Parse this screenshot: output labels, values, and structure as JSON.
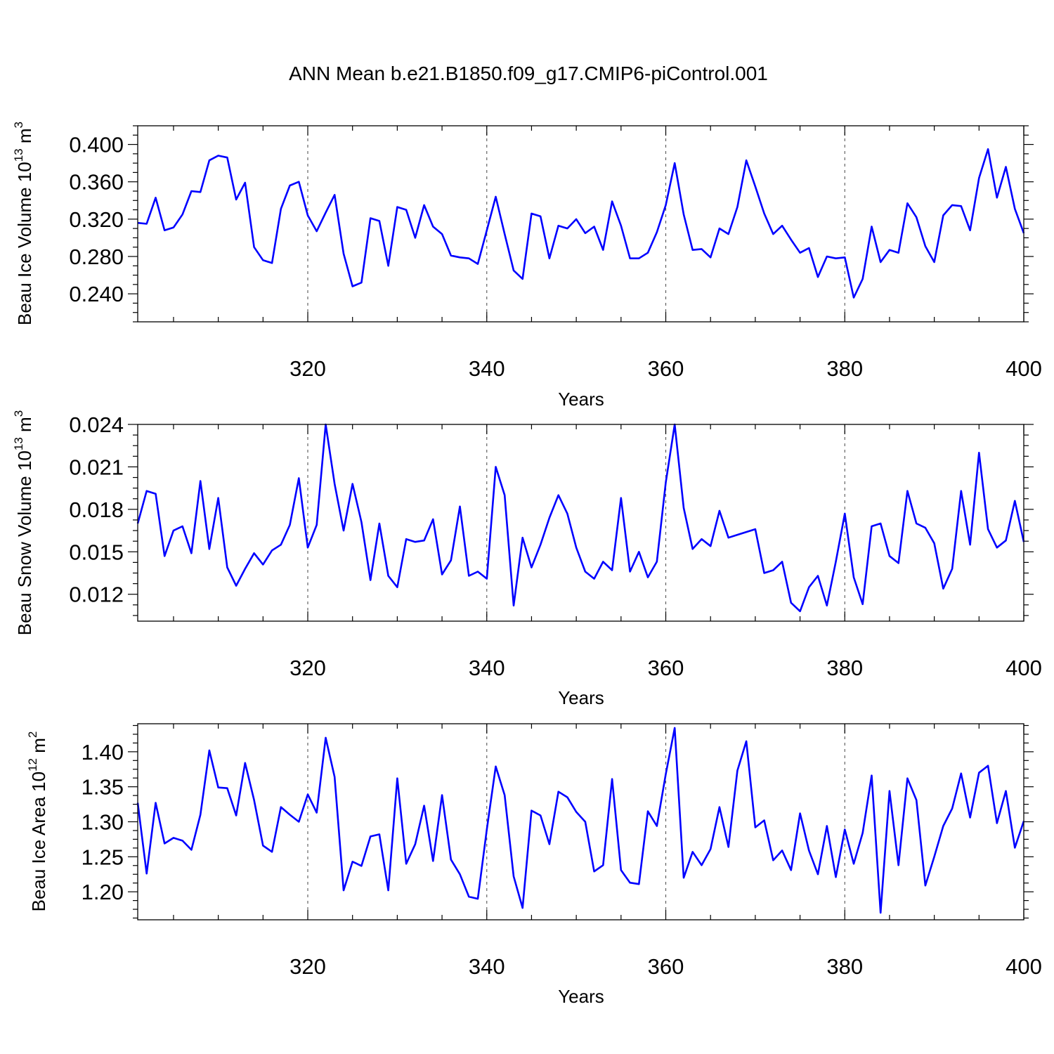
{
  "title": "ANN Mean b.e21.B1850.f09_g17.CMIP6-piControl.001",
  "colors": {
    "line": "#0000ff",
    "axis": "#000000",
    "grid": "#555555"
  },
  "chart_data": [
    {
      "type": "line",
      "name": "ice-volume",
      "ylabel": "Beau Ice Volume 10",
      "ylabel_sup": "13",
      "ylabel_unit": "m",
      "ylabel_unit_sup": "3",
      "xlabel": "Years",
      "xlim": [
        301,
        400
      ],
      "ylim": [
        0.21,
        0.42
      ],
      "x_ticks": [
        "320",
        "340",
        "360",
        "380",
        "400"
      ],
      "x_tick_values": [
        320,
        340,
        360,
        380,
        400
      ],
      "y_ticks": [
        "0.400",
        "0.360",
        "0.320",
        "0.280",
        "0.240"
      ],
      "y_tick_values": [
        0.4,
        0.36,
        0.32,
        0.28,
        0.24
      ],
      "x_start": 301,
      "values": [
        0.316,
        0.315,
        0.343,
        0.308,
        0.311,
        0.325,
        0.35,
        0.349,
        0.383,
        0.388,
        0.386,
        0.341,
        0.359,
        0.29,
        0.276,
        0.273,
        0.331,
        0.356,
        0.36,
        0.324,
        0.307,
        0.327,
        0.346,
        0.283,
        0.248,
        0.252,
        0.321,
        0.318,
        0.27,
        0.333,
        0.33,
        0.3,
        0.335,
        0.312,
        0.304,
        0.281,
        0.279,
        0.278,
        0.272,
        0.308,
        0.344,
        0.304,
        0.265,
        0.256,
        0.326,
        0.323,
        0.278,
        0.313,
        0.31,
        0.32,
        0.305,
        0.312,
        0.287,
        0.339,
        0.313,
        0.278,
        0.278,
        0.284,
        0.306,
        0.335,
        0.38,
        0.325,
        0.287,
        0.288,
        0.279,
        0.31,
        0.304,
        0.333,
        0.383,
        0.355,
        0.326,
        0.304,
        0.313,
        0.298,
        0.284,
        0.289,
        0.258,
        0.28,
        0.278,
        0.279,
        0.236,
        0.256,
        0.312,
        0.274,
        0.287,
        0.284,
        0.337,
        0.322,
        0.291,
        0.274,
        0.324,
        0.335,
        0.334,
        0.308,
        0.364,
        0.395,
        0.343,
        0.376,
        0.331,
        0.305
      ]
    },
    {
      "type": "line",
      "name": "snow-volume",
      "ylabel": "Beau Snow Volume 10",
      "ylabel_sup": "13",
      "ylabel_unit": "m",
      "ylabel_unit_sup": "3",
      "xlabel": "Years",
      "xlim": [
        301,
        400
      ],
      "ylim": [
        0.0101,
        0.024
      ],
      "x_ticks": [
        "320",
        "340",
        "360",
        "380",
        "400"
      ],
      "x_tick_values": [
        320,
        340,
        360,
        380,
        400
      ],
      "y_ticks": [
        "0.024",
        "0.021",
        "0.018",
        "0.015",
        "0.012"
      ],
      "y_tick_values": [
        0.024,
        0.021,
        0.018,
        0.015,
        0.012
      ],
      "x_start": 301,
      "values": [
        0.017,
        0.0193,
        0.0191,
        0.0147,
        0.0165,
        0.0168,
        0.0149,
        0.02,
        0.0152,
        0.0188,
        0.0139,
        0.0126,
        0.0138,
        0.0149,
        0.0141,
        0.0151,
        0.0155,
        0.0169,
        0.0202,
        0.0153,
        0.0169,
        0.024,
        0.0198,
        0.0165,
        0.0198,
        0.0171,
        0.013,
        0.017,
        0.0133,
        0.0125,
        0.0159,
        0.0157,
        0.0158,
        0.0173,
        0.0134,
        0.0144,
        0.0182,
        0.0133,
        0.0136,
        0.0131,
        0.021,
        0.019,
        0.0112,
        0.016,
        0.0139,
        0.0155,
        0.0174,
        0.019,
        0.0177,
        0.0153,
        0.0136,
        0.0131,
        0.0143,
        0.0137,
        0.0188,
        0.0136,
        0.015,
        0.0132,
        0.0143,
        0.0199,
        0.024,
        0.0181,
        0.0152,
        0.0159,
        0.0154,
        0.0179,
        0.016,
        0.0162,
        0.0164,
        0.0166,
        0.0135,
        0.0137,
        0.0143,
        0.0114,
        0.0108,
        0.0125,
        0.0133,
        0.0112,
        0.0143,
        0.0177,
        0.0132,
        0.0113,
        0.0168,
        0.017,
        0.0147,
        0.0142,
        0.0193,
        0.017,
        0.0167,
        0.0156,
        0.0124,
        0.0138,
        0.0193,
        0.0155,
        0.022,
        0.0166,
        0.0153,
        0.0158,
        0.0186,
        0.0157
      ]
    },
    {
      "type": "line",
      "name": "ice-area",
      "ylabel": "Beau Ice Area 10",
      "ylabel_sup": "12",
      "ylabel_unit": "m",
      "ylabel_unit_sup": "2",
      "xlabel": "Years",
      "xlim": [
        301,
        400
      ],
      "ylim": [
        1.16,
        1.44
      ],
      "x_ticks": [
        "320",
        "340",
        "360",
        "380",
        "400"
      ],
      "x_tick_values": [
        320,
        340,
        360,
        380,
        400
      ],
      "y_ticks": [
        "1.40",
        "1.35",
        "1.30",
        "1.25",
        "1.20"
      ],
      "y_tick_values": [
        1.4,
        1.35,
        1.3,
        1.25,
        1.2
      ],
      "x_start": 301,
      "values": [
        1.327,
        1.226,
        1.327,
        1.269,
        1.277,
        1.273,
        1.26,
        1.31,
        1.402,
        1.349,
        1.348,
        1.309,
        1.384,
        1.331,
        1.266,
        1.257,
        1.321,
        1.31,
        1.3,
        1.339,
        1.313,
        1.42,
        1.364,
        1.202,
        1.243,
        1.237,
        1.279,
        1.282,
        1.202,
        1.362,
        1.24,
        1.268,
        1.323,
        1.244,
        1.338,
        1.246,
        1.225,
        1.193,
        1.19,
        1.289,
        1.379,
        1.338,
        1.222,
        1.177,
        1.316,
        1.309,
        1.268,
        1.343,
        1.335,
        1.314,
        1.3,
        1.229,
        1.238,
        1.361,
        1.231,
        1.213,
        1.211,
        1.315,
        1.294,
        1.368,
        1.434,
        1.22,
        1.257,
        1.238,
        1.261,
        1.321,
        1.264,
        1.373,
        1.415,
        1.292,
        1.302,
        1.245,
        1.259,
        1.231,
        1.312,
        1.259,
        1.225,
        1.294,
        1.221,
        1.289,
        1.24,
        1.284,
        1.366,
        1.17,
        1.344,
        1.238,
        1.362,
        1.331,
        1.209,
        1.25,
        1.294,
        1.319,
        1.369,
        1.306,
        1.37,
        1.38,
        1.298,
        1.344,
        1.263,
        1.301
      ]
    }
  ]
}
